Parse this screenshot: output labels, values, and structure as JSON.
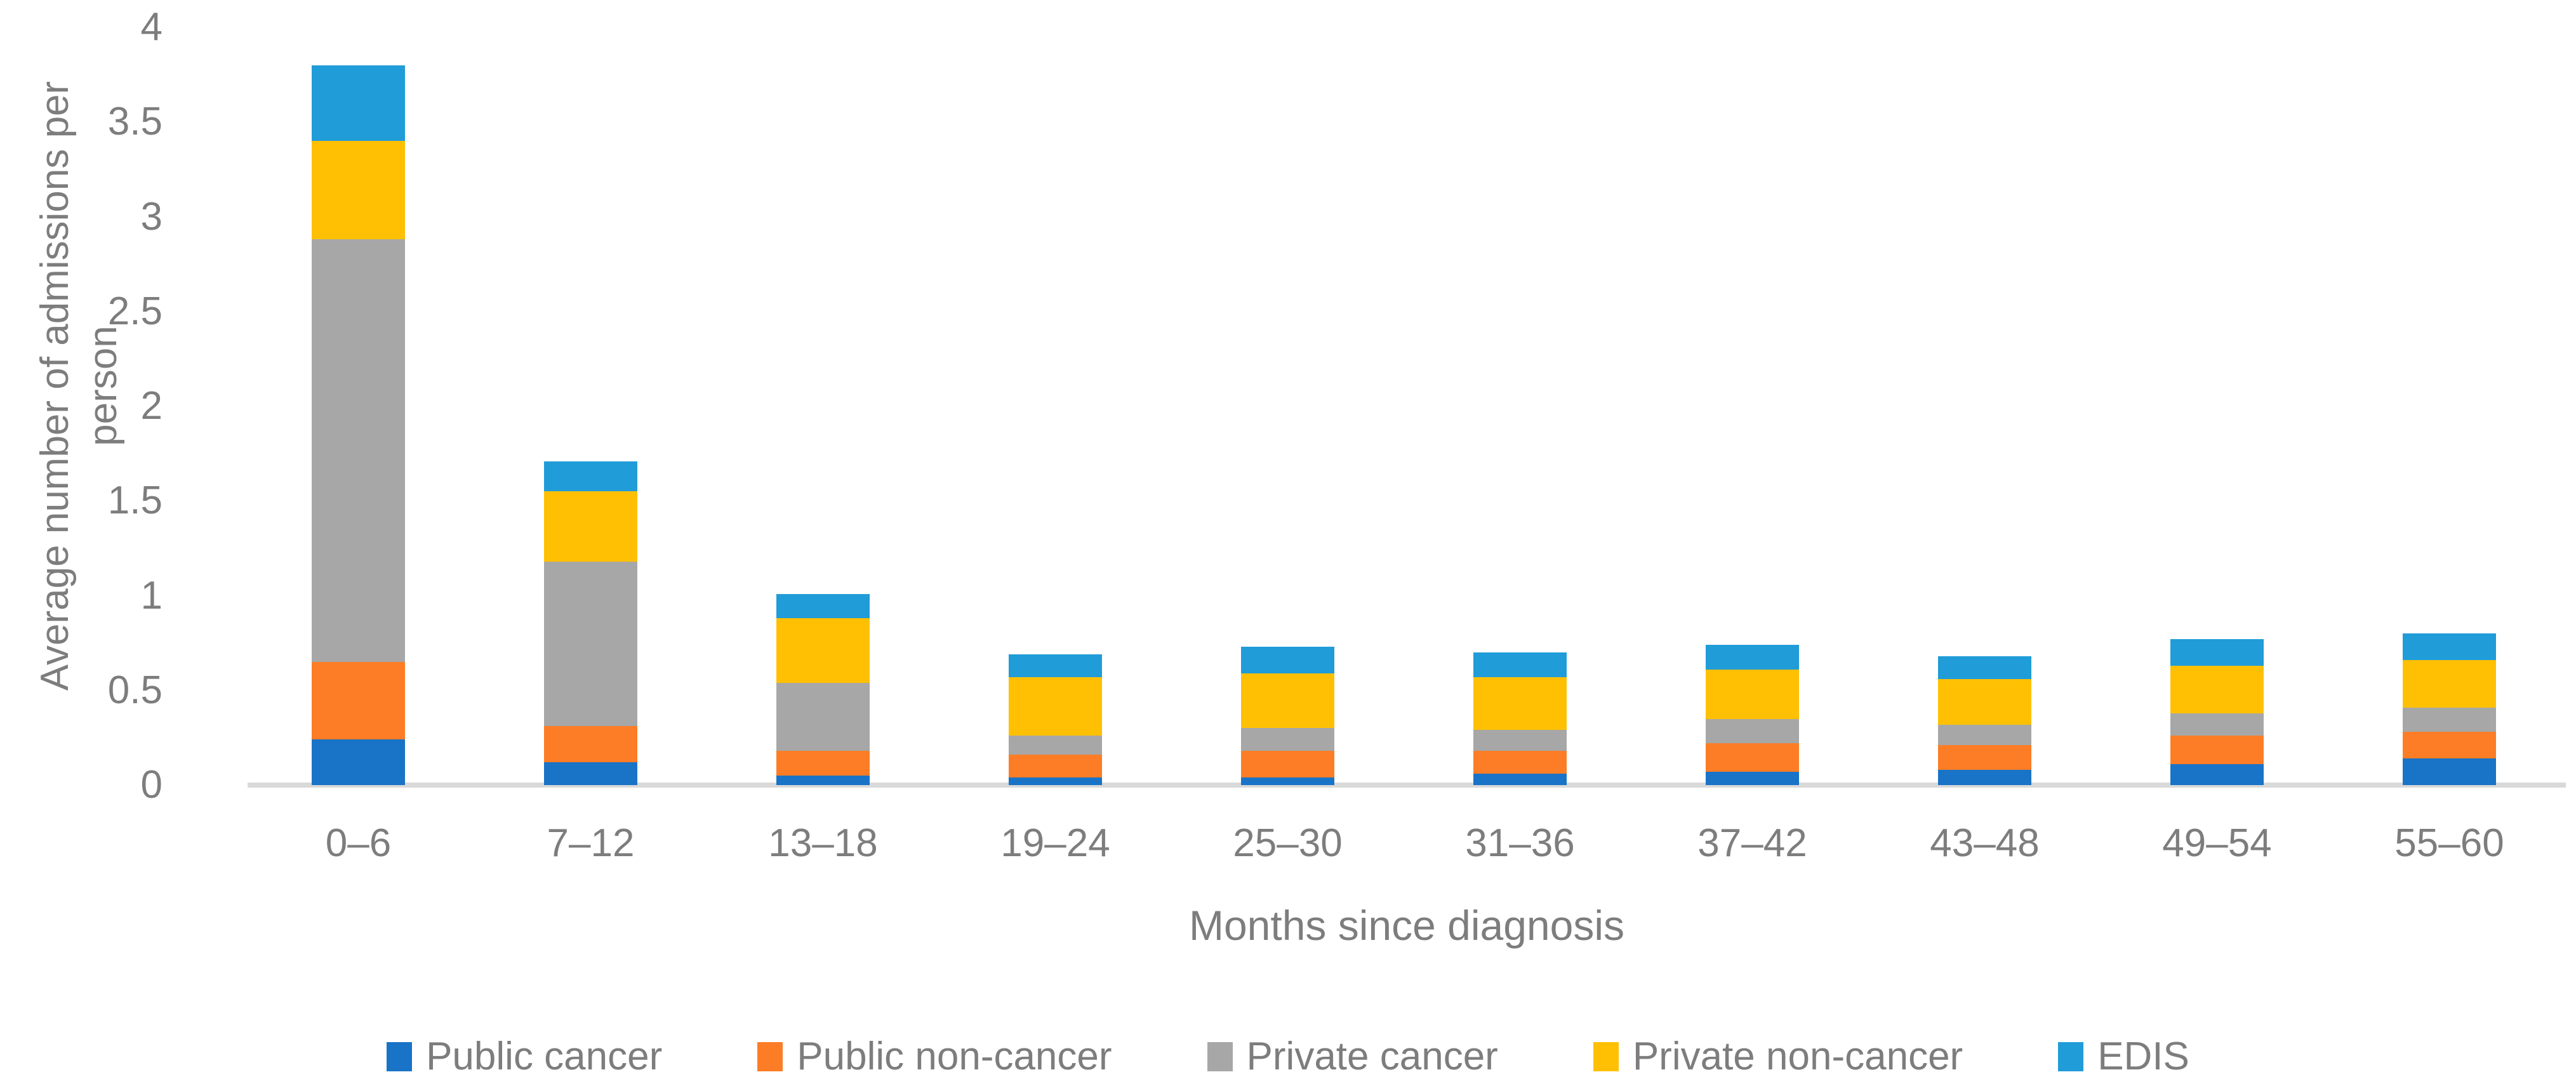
{
  "chart_data": {
    "type": "bar",
    "stacked": true,
    "title": "",
    "xlabel": "Months since diagnosis",
    "ylabel": "Average number of admissions per person",
    "ylabel_lines": [
      "Average number of admissions per",
      "person"
    ],
    "categories": [
      "0–6",
      "7–12",
      "13–18",
      "19–24",
      "25–30",
      "31–36",
      "37–42",
      "43–48",
      "49–54",
      "55–60"
    ],
    "series": [
      {
        "name": "Public cancer",
        "color": "#1973c6",
        "values": [
          0.24,
          0.12,
          0.05,
          0.04,
          0.04,
          0.06,
          0.07,
          0.08,
          0.11,
          0.14
        ]
      },
      {
        "name": "Public non-cancer",
        "color": "#fc7d26",
        "values": [
          0.41,
          0.19,
          0.13,
          0.12,
          0.14,
          0.12,
          0.15,
          0.13,
          0.15,
          0.14
        ]
      },
      {
        "name": "Private cancer",
        "color": "#a7a7a7",
        "values": [
          2.23,
          0.87,
          0.36,
          0.1,
          0.12,
          0.11,
          0.13,
          0.11,
          0.12,
          0.13
        ]
      },
      {
        "name": "Private non-cancer",
        "color": "#ffc003",
        "values": [
          0.52,
          0.37,
          0.34,
          0.31,
          0.29,
          0.28,
          0.26,
          0.24,
          0.25,
          0.25
        ]
      },
      {
        "name": "EDIS",
        "color": "#209cd8",
        "values": [
          0.4,
          0.16,
          0.13,
          0.12,
          0.14,
          0.13,
          0.13,
          0.12,
          0.14,
          0.14
        ]
      }
    ],
    "stack_totals": [
      3.8,
      1.71,
      1.01,
      0.69,
      0.73,
      0.7,
      0.74,
      0.68,
      0.77,
      0.8
    ],
    "yticks": [
      {
        "value": 0,
        "label": "0"
      },
      {
        "value": 0.5,
        "label": "0.5"
      },
      {
        "value": 1,
        "label": "1"
      },
      {
        "value": 1.5,
        "label": "1.5"
      },
      {
        "value": 2,
        "label": "2"
      },
      {
        "value": 2.5,
        "label": "2.5"
      },
      {
        "value": 3,
        "label": "3"
      },
      {
        "value": 3.5,
        "label": "3.5"
      },
      {
        "value": 4,
        "label": "4"
      }
    ],
    "ylim": [
      0,
      4
    ],
    "grid": false,
    "legend_position": "bottom"
  },
  "colors": {
    "axis_line": "#d9d9d9",
    "label_text": "#7d7d7d",
    "background": "#ffffff"
  }
}
